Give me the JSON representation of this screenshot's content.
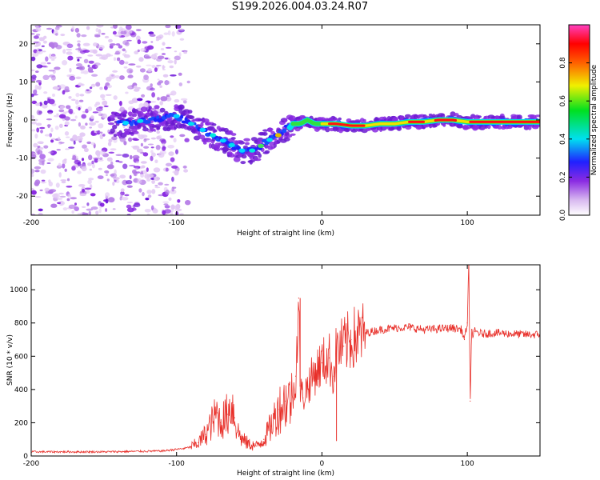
{
  "title": "S199.2026.004.03.24.R07",
  "chart_data": [
    {
      "type": "heatmap",
      "name": "spectrogram",
      "xlabel": "Height of straight line (km)",
      "ylabel": "Frequency (Hz)",
      "xlim": [
        -200,
        150
      ],
      "ylim": [
        -25,
        25
      ],
      "xticks": [
        -200,
        -100,
        0,
        100
      ],
      "yticks": [
        -20,
        -10,
        0,
        10,
        20
      ],
      "xtick_labels": [
        "-200",
        "-100",
        "0",
        "100"
      ],
      "ytick_labels": [
        "-20",
        "-10",
        "0",
        "10",
        "20"
      ],
      "colorbar": {
        "label": "Normalized spectral amplitude",
        "range": [
          0,
          1
        ],
        "ticks": [
          0.0,
          0.2,
          0.4,
          0.6,
          0.8
        ],
        "tick_labels": [
          "0.0",
          "0.2",
          "0.4",
          "0.6",
          "0.8"
        ],
        "colormap": "rainbow (white-violet-blue-cyan-green-yellow-red-magenta)"
      },
      "ridge": {
        "x": [
          -140,
          -120,
          -100,
          -90,
          -80,
          -70,
          -60,
          -55,
          -50,
          -45,
          -40,
          -35,
          -30,
          -25,
          -22,
          -20,
          -15,
          -10,
          -5,
          0,
          10,
          20,
          30,
          40,
          50,
          60,
          70,
          80,
          90,
          100,
          110,
          120,
          130,
          140,
          150
        ],
        "y": [
          -1,
          0,
          1,
          -1,
          -3,
          -5,
          -7,
          -8,
          -8,
          -8,
          -6,
          -5,
          -4,
          -2,
          -2,
          -1,
          -1,
          0,
          -1,
          -1,
          -1,
          -1.5,
          -1.5,
          -1,
          -1,
          -0.5,
          -0.5,
          0,
          0,
          -0.5,
          -0.5,
          -0.5,
          -0.5,
          -0.5,
          -0.5
        ]
      }
    },
    {
      "type": "line",
      "name": "snr",
      "xlabel": "Height of straight line (km)",
      "ylabel": "SNR (10 * v/v)",
      "xlim": [
        -200,
        150
      ],
      "ylim": [
        0,
        1150
      ],
      "xticks": [
        -200,
        -100,
        0,
        100
      ],
      "yticks": [
        0,
        200,
        400,
        600,
        800,
        1000
      ],
      "xtick_labels": [
        "-200",
        "-100",
        "0",
        "100"
      ],
      "ytick_labels": [
        "0",
        "200",
        "400",
        "600",
        "800",
        "1000"
      ],
      "color": "#e8302a",
      "series": [
        {
          "name": "SNR",
          "x": [
            -200,
            -150,
            -110,
            -95,
            -90,
            -85,
            -80,
            -75,
            -72,
            -70,
            -65,
            -62,
            -60,
            -58,
            -55,
            -50,
            -45,
            -40,
            -35,
            -30,
            -25,
            -20,
            -18,
            -16,
            -15,
            -13,
            -10,
            -5,
            0,
            5,
            8,
            10,
            15,
            20,
            30,
            40,
            50,
            60,
            70,
            80,
            90,
            96,
            98,
            100,
            101,
            102,
            103,
            104,
            105,
            110,
            120,
            130,
            140,
            150
          ],
          "y": [
            25,
            25,
            30,
            45,
            55,
            80,
            130,
            210,
            260,
            200,
            250,
            320,
            230,
            150,
            100,
            70,
            60,
            100,
            180,
            280,
            330,
            350,
            480,
            950,
            420,
            350,
            420,
            500,
            560,
            590,
            480,
            640,
            660,
            700,
            740,
            760,
            770,
            775,
            760,
            765,
            770,
            760,
            700,
            800,
            1150,
            330,
            760,
            720,
            750,
            735,
            740,
            735,
            730,
            730
          ]
        }
      ]
    }
  ]
}
